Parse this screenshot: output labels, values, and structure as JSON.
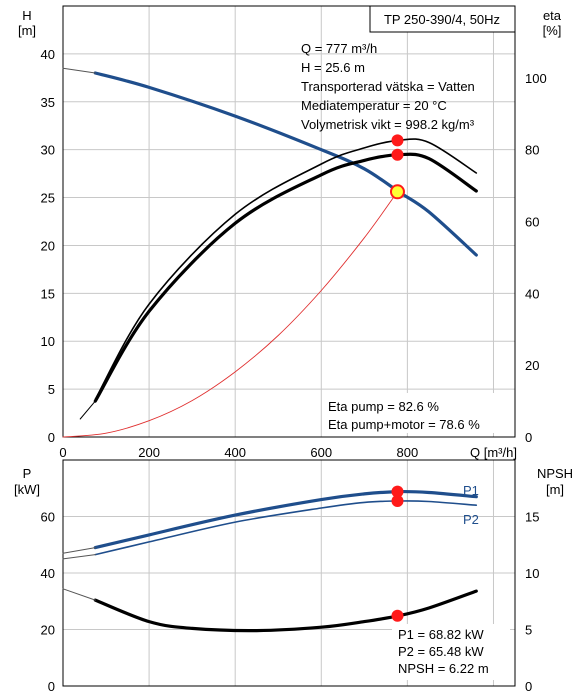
{
  "header": {
    "model": "TP 250-390/4, 50Hz"
  },
  "top_panel": {
    "left_unit_symbol": "H",
    "left_unit": "[m]",
    "right_unit_symbol": "eta",
    "right_unit": "[%]",
    "x_unit": "Q [m³/h]",
    "info_lines": [
      "Q = 777 m³/h",
      "H = 25.6 m",
      "Transporterad vätska = Vatten",
      "Mediatemperatur = 20 °C",
      "Volymetrisk vikt = 998.2 kg/m³"
    ],
    "eta_lines": [
      "Eta pump = 82.6 %",
      "Eta pump+motor = 78.6 %"
    ]
  },
  "bottom_panel": {
    "left_unit_symbol": "P",
    "left_unit": "[kW]",
    "right_unit_symbol": "NPSH",
    "right_unit": "[m]",
    "p1_label": "P1",
    "p2_label": "P2",
    "value_lines": [
      "P1 = 68.82 kW",
      "P2 = 65.48 kW",
      "NPSH = 6.22 m"
    ]
  },
  "colors": {
    "head": "#1f4e8c",
    "efficiency": "#000000",
    "system_curve": "#e03030",
    "marker": "#ff1a1a",
    "marker_yellow": "#ffff33",
    "grid": "#c8c8c8"
  },
  "chart_data": [
    {
      "type": "line",
      "xlabel": "Q [m³/h]",
      "ylabel": "H [m]",
      "y2label": "eta [%]",
      "xlim": [
        0,
        1050
      ],
      "ylim": [
        0,
        45
      ],
      "y2lim": [
        0,
        120
      ],
      "x_ticks": [
        0,
        200,
        400,
        600,
        800
      ],
      "y_ticks": [
        0,
        5,
        10,
        15,
        20,
        25,
        30,
        35,
        40
      ],
      "y2_ticks": [
        0,
        20,
        40,
        60,
        80,
        100
      ],
      "grid": true,
      "series": [
        {
          "axis": "left",
          "style": "head",
          "x": [
            75,
            200,
            400,
            600,
            700,
            780,
            850,
            960
          ],
          "y": [
            38.0,
            36.5,
            33.5,
            30.0,
            28.0,
            25.6,
            23.5,
            19.0
          ]
        },
        {
          "axis": "left",
          "style": "head_thin",
          "x": [
            0,
            75
          ],
          "y": [
            38.5,
            38.0
          ]
        },
        {
          "axis": "right",
          "style": "eff_thin",
          "x": [
            75,
            200,
            400,
            600,
            700,
            780,
            850,
            960
          ],
          "y": [
            10.5,
            37,
            62,
            76,
            80.5,
            82.6,
            82,
            73.5
          ]
        },
        {
          "axis": "right",
          "style": "eff_thick",
          "x": [
            75,
            200,
            400,
            600,
            700,
            780,
            850,
            960
          ],
          "y": [
            10,
            35,
            59.5,
            73,
            77,
            78.6,
            77.5,
            68.5
          ]
        },
        {
          "axis": "right",
          "style": "eff_tail",
          "x": [
            40,
            75
          ],
          "y": [
            5,
            10
          ]
        },
        {
          "axis": "left",
          "style": "system",
          "x": [
            0,
            100,
            200,
            300,
            400,
            500,
            600,
            700,
            777
          ],
          "y": [
            0,
            0.4,
            1.7,
            3.8,
            6.8,
            10.6,
            15.3,
            20.8,
            25.6
          ]
        }
      ],
      "markers": [
        {
          "axis": "left",
          "x": 777,
          "y": 25.6,
          "style": "yellow"
        },
        {
          "axis": "right",
          "x": 777,
          "y": 82.6,
          "style": "red"
        },
        {
          "axis": "right",
          "x": 777,
          "y": 78.6,
          "style": "red"
        }
      ]
    },
    {
      "type": "line",
      "ylabel": "P [kW]",
      "y2label": "NPSH [m]",
      "xlim": [
        0,
        1050
      ],
      "ylim": [
        0,
        80
      ],
      "y2lim": [
        0,
        20
      ],
      "y_ticks": [
        0,
        20,
        40,
        60
      ],
      "y2_ticks": [
        0,
        5,
        10,
        15
      ],
      "grid": true,
      "series": [
        {
          "name": "P1",
          "axis": "left",
          "style": "p1",
          "x": [
            75,
            200,
            400,
            600,
            700,
            780,
            850,
            960
          ],
          "y": [
            49,
            53.5,
            60.5,
            66,
            68,
            68.8,
            68.5,
            67
          ]
        },
        {
          "axis": "left",
          "style": "p_thin",
          "x": [
            0,
            75
          ],
          "y": [
            47,
            49
          ]
        },
        {
          "name": "P2",
          "axis": "left",
          "style": "p2",
          "x": [
            75,
            200,
            400,
            600,
            700,
            780,
            850,
            960
          ],
          "y": [
            46.5,
            51,
            58,
            63,
            65,
            65.5,
            65.3,
            64
          ]
        },
        {
          "axis": "left",
          "style": "p_thin",
          "x": [
            0,
            75
          ],
          "y": [
            45,
            46.5
          ]
        },
        {
          "axis": "right",
          "style": "npsh",
          "x": [
            75,
            200,
            300,
            450,
            600,
            700,
            780,
            850,
            960
          ],
          "y": [
            7.6,
            5.7,
            5.1,
            4.9,
            5.2,
            5.7,
            6.22,
            6.9,
            8.4
          ]
        },
        {
          "axis": "right",
          "style": "npsh_thin",
          "x": [
            0,
            75
          ],
          "y": [
            8.6,
            7.6
          ]
        }
      ],
      "markers": [
        {
          "axis": "left",
          "x": 777,
          "y": 68.8,
          "style": "red"
        },
        {
          "axis": "left",
          "x": 777,
          "y": 65.5,
          "style": "red"
        },
        {
          "axis": "right",
          "x": 777,
          "y": 6.22,
          "style": "red"
        }
      ]
    }
  ]
}
